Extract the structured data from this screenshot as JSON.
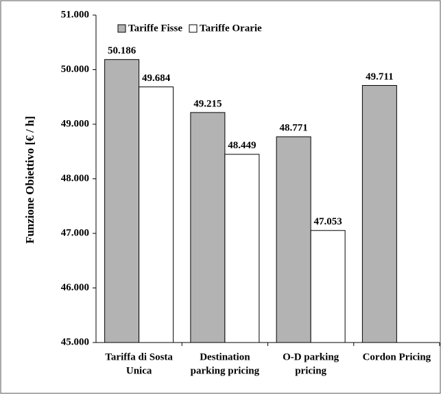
{
  "chart_data": {
    "type": "bar",
    "y_label": "Funzione Obiettivo [€ / h]",
    "categories": [
      [
        "Tariffa di Sosta",
        "Unica"
      ],
      [
        "Destination",
        "parking pricing"
      ],
      [
        "O-D parking",
        "pricing"
      ],
      [
        "Cordon Pricing"
      ]
    ],
    "series": [
      {
        "name": "Tariffe Fisse",
        "color": "#b3b3b3",
        "values": [
          50186,
          49215,
          48771,
          49711
        ],
        "value_labels": [
          "50.186",
          "49.215",
          "48.771",
          "49.711"
        ]
      },
      {
        "name": "Tariffe Orarie",
        "color": "#ffffff",
        "values": [
          49684,
          48449,
          47053,
          null
        ],
        "value_labels": [
          "49.684",
          "48.449",
          "47.053",
          null
        ]
      }
    ],
    "ylim": [
      45000,
      51000
    ],
    "yticks": [
      {
        "value": 45000,
        "label": "45.000"
      },
      {
        "value": 46000,
        "label": "46.000"
      },
      {
        "value": 47000,
        "label": "47.000"
      },
      {
        "value": 48000,
        "label": "48.000"
      },
      {
        "value": 49000,
        "label": "49.000"
      },
      {
        "value": 50000,
        "label": "50.000"
      },
      {
        "value": 51000,
        "label": "51.000"
      }
    ],
    "legend": "top"
  }
}
